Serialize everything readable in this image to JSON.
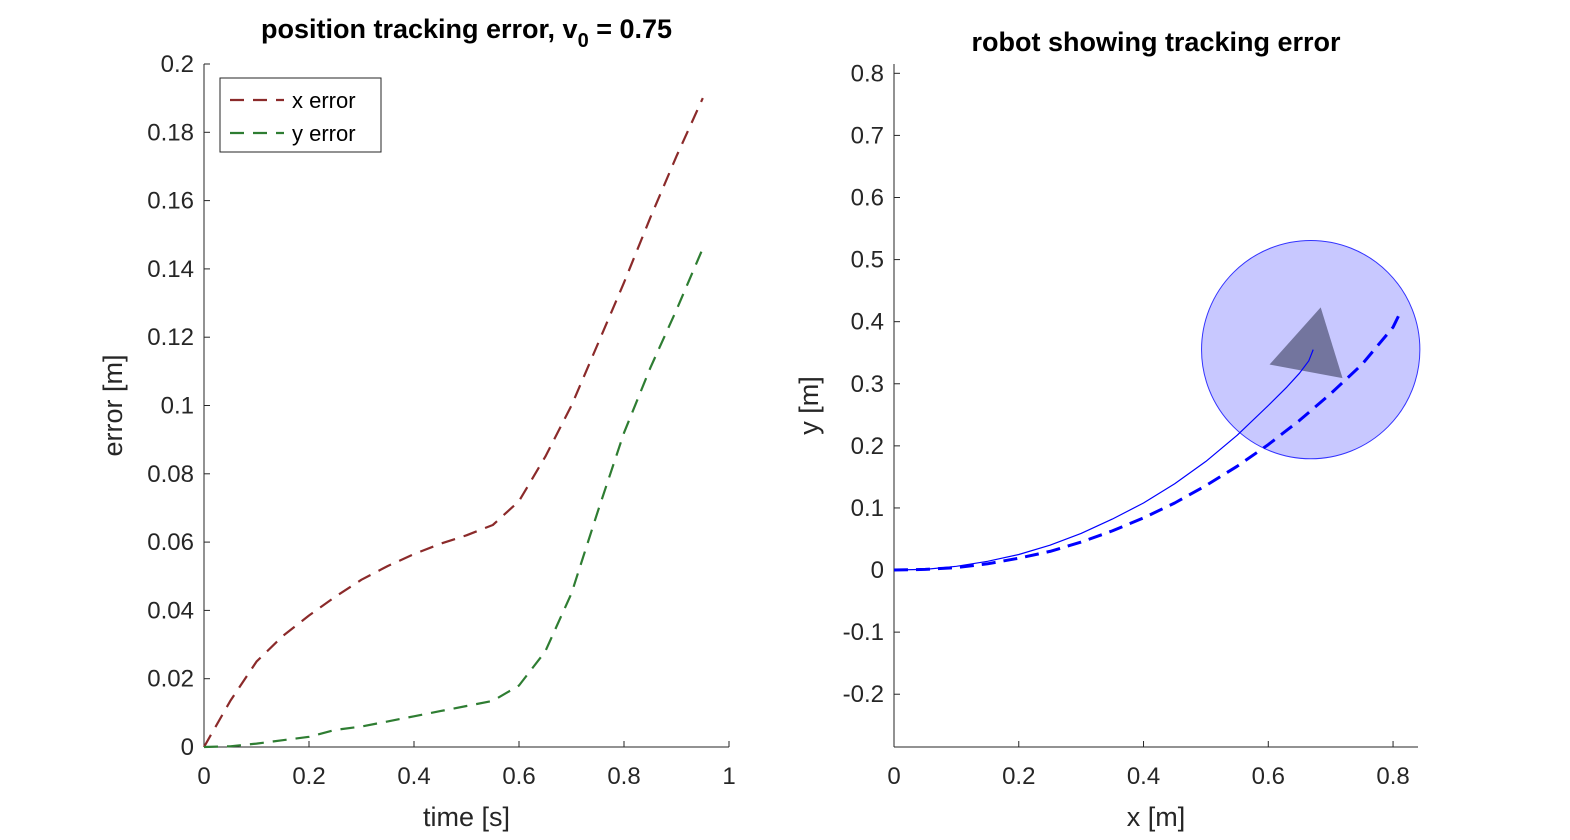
{
  "chart_data": [
    {
      "type": "line",
      "title": "position tracking error, v",
      "title_subscript": "0",
      "title_suffix": " = 0.75",
      "xlabel": "time [s]",
      "ylabel": "error [m]",
      "xlim": [
        0,
        1
      ],
      "ylim": [
        0,
        0.2
      ],
      "xticks": [
        0,
        0.2,
        0.4,
        0.6,
        0.8,
        1
      ],
      "xtick_labels": [
        "0",
        "0.2",
        "0.4",
        "0.6",
        "0.8",
        "1"
      ],
      "yticks": [
        0,
        0.02,
        0.04,
        0.06,
        0.08,
        0.1,
        0.12,
        0.14,
        0.16,
        0.18,
        0.2
      ],
      "ytick_labels": [
        "0",
        "0.02",
        "0.04",
        "0.06",
        "0.08",
        "0.1",
        "0.12",
        "0.14",
        "0.16",
        "0.18",
        "0.2"
      ],
      "grid": false,
      "legend": "top-left",
      "series": [
        {
          "name": "x error",
          "color": "#8b2a2a",
          "style": "dashed",
          "x": [
            0,
            0.05,
            0.1,
            0.15,
            0.2,
            0.25,
            0.3,
            0.35,
            0.4,
            0.45,
            0.5,
            0.55,
            0.6,
            0.65,
            0.7,
            0.75,
            0.8,
            0.85,
            0.9,
            0.95
          ],
          "y": [
            0,
            0.0135,
            0.025,
            0.0325,
            0.0385,
            0.044,
            0.049,
            0.053,
            0.0565,
            0.0595,
            0.062,
            0.065,
            0.072,
            0.085,
            0.1,
            0.118,
            0.136,
            0.155,
            0.173,
            0.19
          ]
        },
        {
          "name": "y error",
          "color": "#2e7d32",
          "style": "dashed",
          "x": [
            0,
            0.05,
            0.1,
            0.15,
            0.2,
            0.25,
            0.3,
            0.35,
            0.4,
            0.45,
            0.5,
            0.55,
            0.6,
            0.65,
            0.7,
            0.75,
            0.8,
            0.85,
            0.9,
            0.95
          ],
          "y": [
            0,
            0.0002,
            0.001,
            0.002,
            0.003,
            0.005,
            0.006,
            0.0075,
            0.009,
            0.0105,
            0.012,
            0.0135,
            0.018,
            0.028,
            0.045,
            0.069,
            0.092,
            0.111,
            0.128,
            0.146
          ]
        }
      ]
    },
    {
      "type": "line",
      "title": "robot showing tracking error",
      "xlabel": "x [m]",
      "ylabel": "y [m]",
      "xlim": [
        0,
        0.84
      ],
      "ylim": [
        -0.285,
        0.815
      ],
      "xticks": [
        0,
        0.2,
        0.4,
        0.6,
        0.8
      ],
      "xtick_labels": [
        "0",
        "0.2",
        "0.4",
        "0.6",
        "0.8"
      ],
      "yticks": [
        -0.2,
        -0.1,
        0,
        0.1,
        0.2,
        0.3,
        0.4,
        0.5,
        0.6,
        0.7,
        0.8
      ],
      "ytick_labels": [
        "-0.2",
        "-0.1",
        "0",
        "0.1",
        "0.2",
        "0.3",
        "0.4",
        "0.5",
        "0.6",
        "0.7",
        "0.8"
      ],
      "grid": false,
      "series": [
        {
          "color": "#0000ff",
          "style": "solid-thin",
          "x": [
            0,
            0.05,
            0.1,
            0.15,
            0.2,
            0.25,
            0.3,
            0.35,
            0.4,
            0.45,
            0.5,
            0.55,
            0.6,
            0.63,
            0.65,
            0.665,
            0.672
          ],
          "y": [
            0,
            0.001,
            0.006,
            0.014,
            0.025,
            0.04,
            0.059,
            0.082,
            0.108,
            0.139,
            0.175,
            0.217,
            0.265,
            0.295,
            0.317,
            0.337,
            0.355
          ]
        },
        {
          "color": "#0000ff",
          "style": "dashed-thick",
          "x": [
            0,
            0.05,
            0.1,
            0.15,
            0.2,
            0.25,
            0.3,
            0.35,
            0.4,
            0.45,
            0.5,
            0.55,
            0.6,
            0.65,
            0.7,
            0.75,
            0.8,
            0.813
          ],
          "y": [
            0,
            0.001,
            0.004,
            0.01,
            0.019,
            0.03,
            0.045,
            0.063,
            0.084,
            0.108,
            0.136,
            0.167,
            0.202,
            0.241,
            0.284,
            0.331,
            0.391,
            0.418
          ]
        }
      ],
      "robot": {
        "center": [
          0.668,
          0.355
        ],
        "radius": 0.175,
        "body_color": "#c8c8ff",
        "outline_color": "#3333ff",
        "triangle": [
          [
            0.684,
            0.423
          ],
          [
            0.602,
            0.331
          ],
          [
            0.719,
            0.309
          ]
        ],
        "triangle_color": "#6f7199"
      }
    }
  ]
}
